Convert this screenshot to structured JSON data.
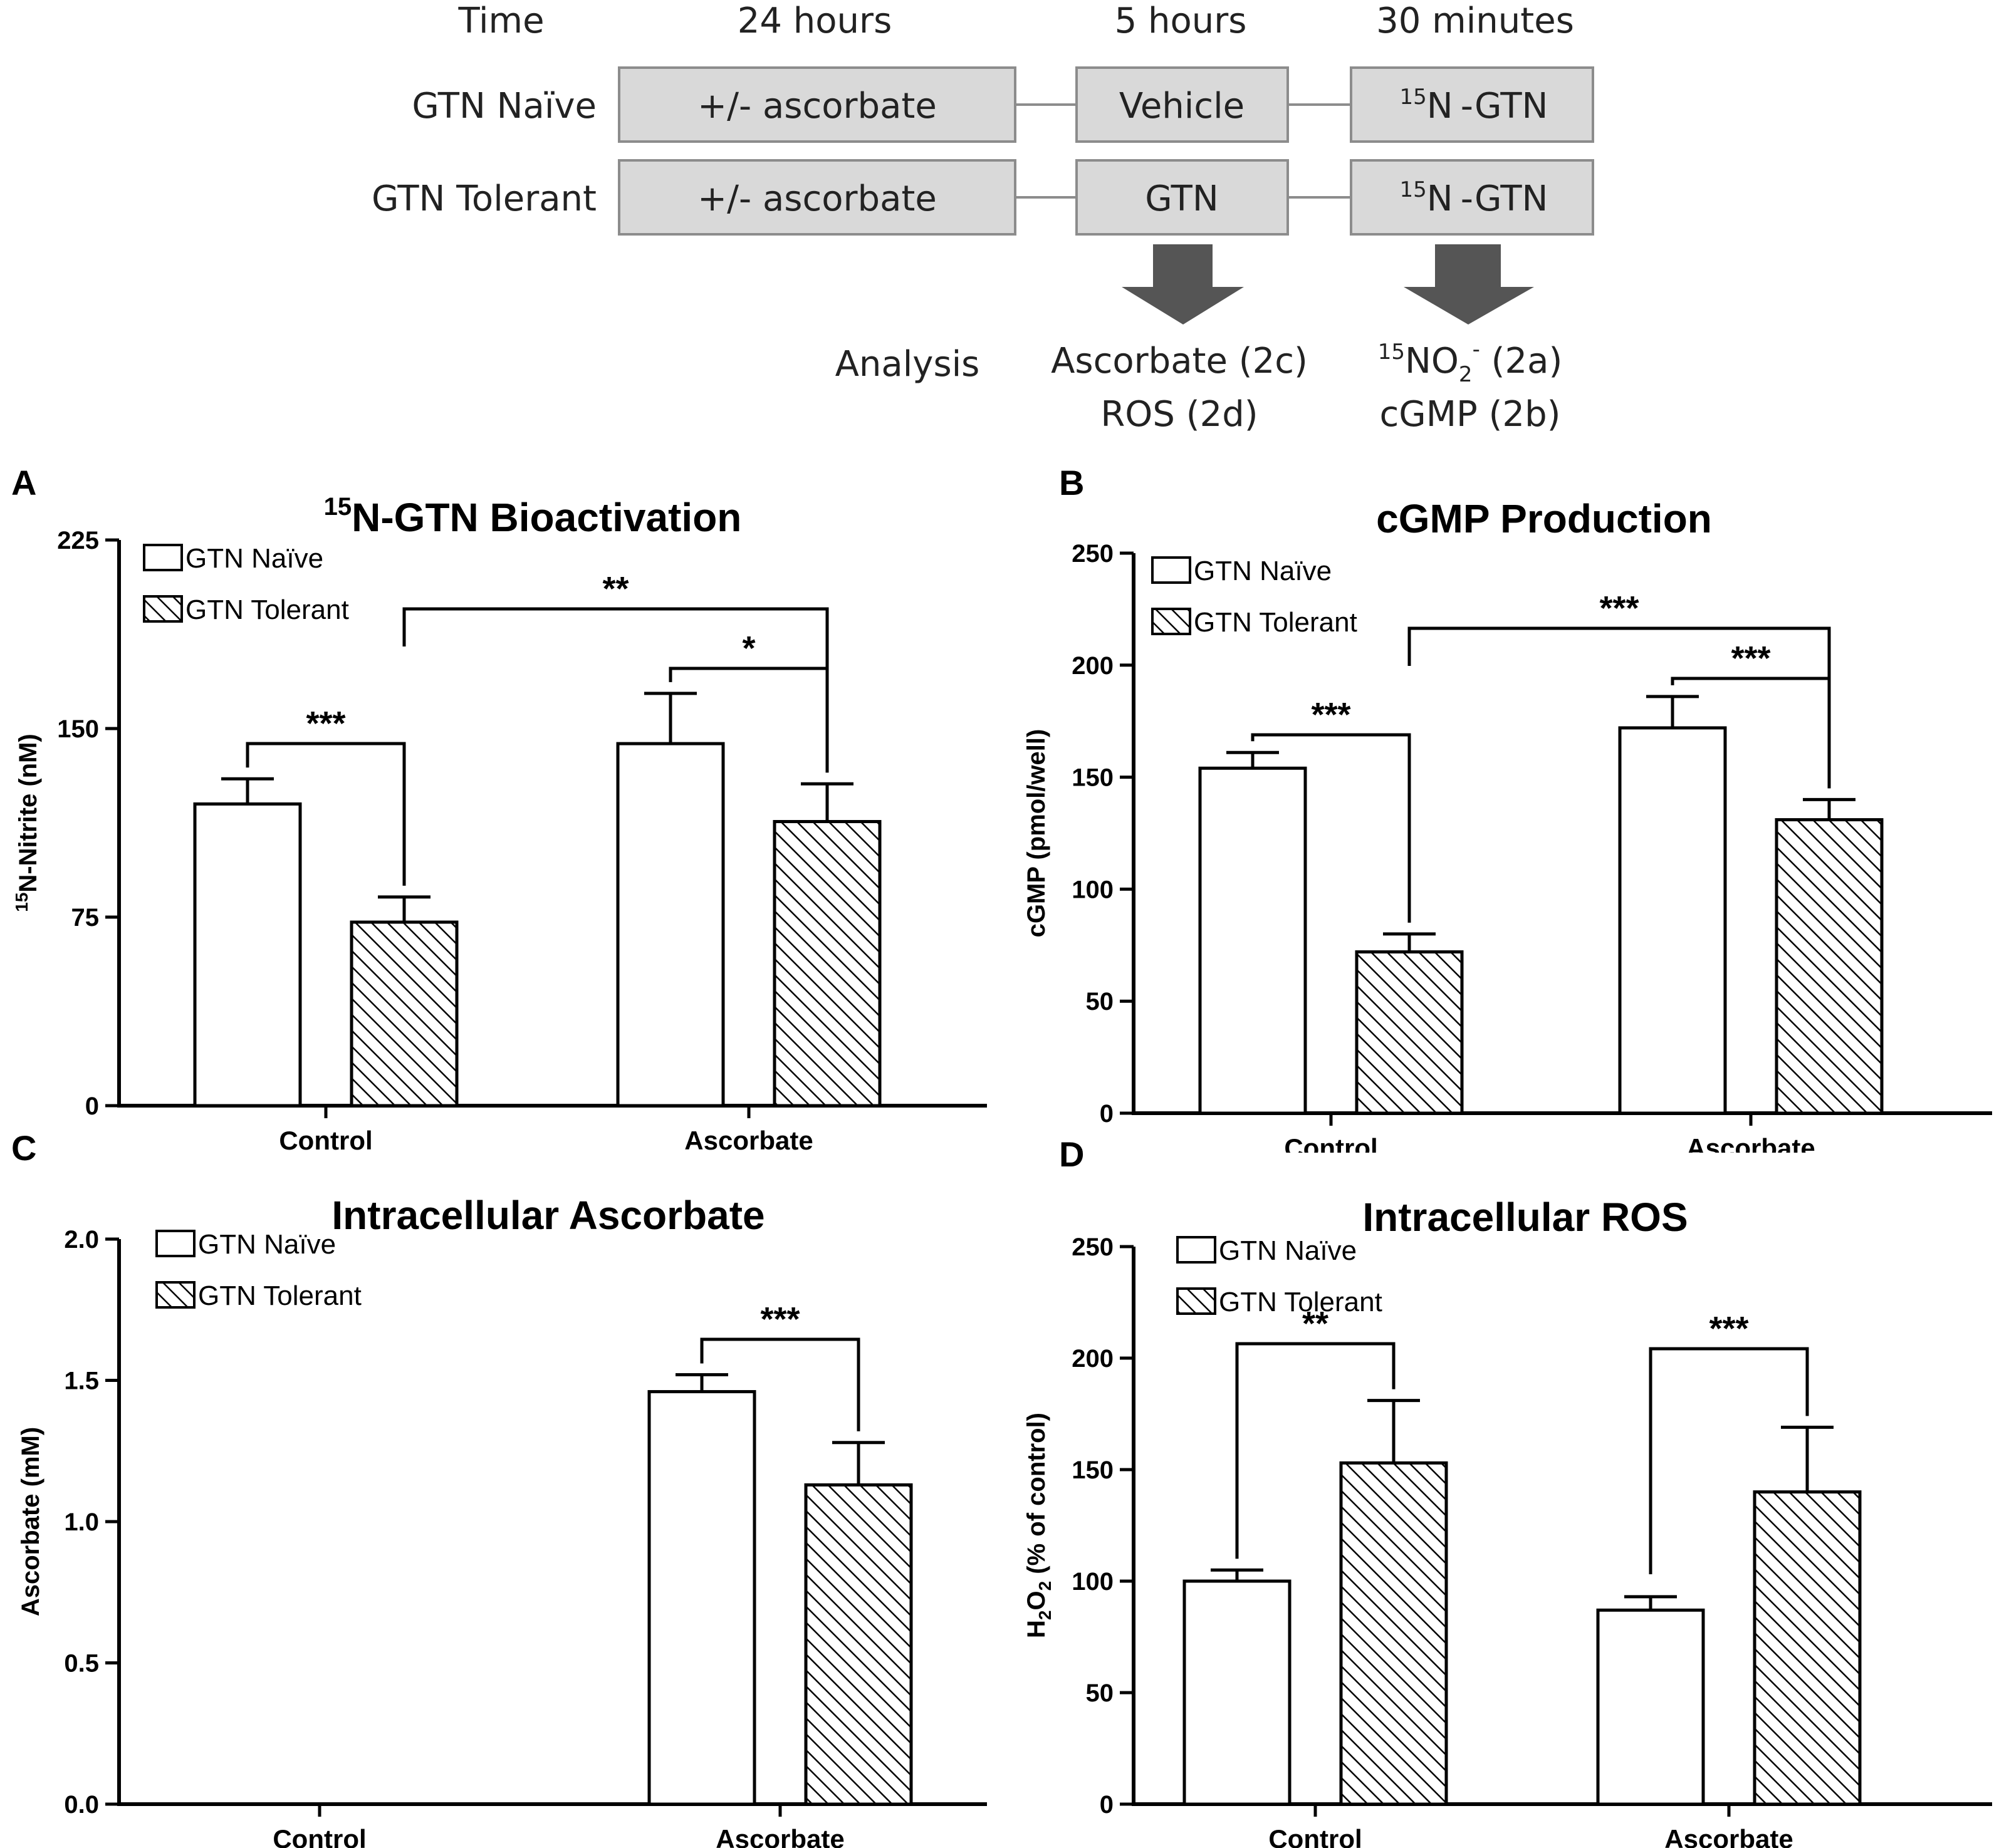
{
  "schema": {
    "time_label": "Time",
    "durations": [
      "24 hours",
      "5 hours",
      "30 minutes"
    ],
    "rows": [
      {
        "label": "GTN Naïve",
        "boxes": [
          "+/- ascorbate",
          "Vehicle",
          "-GTN"
        ],
        "iso": "15",
        "iso_base": "N"
      },
      {
        "label": "GTN Tolerant",
        "boxes": [
          "+/- ascorbate",
          "GTN",
          "-GTN"
        ],
        "iso": "15",
        "iso_base": "N"
      }
    ],
    "analysis_label": "Analysis",
    "analysis_mid": [
      "Ascorbate (2c)",
      "ROS (2d)"
    ],
    "analysis_right_line1": {
      "sup": "15",
      "base": "NO",
      "sub": "2",
      "sup2": "-",
      "tail": " (2a)"
    },
    "analysis_right_line2": "cGMP (2b)",
    "colors": {
      "box_fill": "#d9d9d9",
      "box_stroke": "#8c8c8c",
      "arrow": "#555555",
      "text": "#222222"
    },
    "arrow_icon": "down-arrow-icon"
  },
  "legend": {
    "naive": "GTN Naïve",
    "tolerant": "GTN Tolerant"
  },
  "chart_data": [
    {
      "panel": "A",
      "type": "bar",
      "title": "N-GTN Bioactivation",
      "title_sup": "15",
      "ylabel": "N-Nitrite (nM)",
      "ylabel_sup": "15",
      "xlabel": "",
      "categories": [
        "Control",
        "Ascorbate"
      ],
      "ylim": [
        0,
        225
      ],
      "yticks": [
        0,
        75,
        150,
        225
      ],
      "series": [
        {
          "name": "GTN Naïve",
          "values": [
            120,
            144
          ],
          "errors": [
            10,
            20
          ]
        },
        {
          "name": "GTN Tolerant",
          "values": [
            73,
            113
          ],
          "errors": [
            10,
            15
          ]
        }
      ],
      "brackets": [
        {
          "label": "***",
          "from": [
            0,
            0
          ],
          "to": [
            0,
            1
          ]
        },
        {
          "label": "*",
          "from": [
            1,
            0
          ],
          "to": [
            1,
            1
          ]
        },
        {
          "label": "**",
          "from": [
            0,
            1
          ],
          "to": [
            1,
            1
          ]
        }
      ]
    },
    {
      "panel": "B",
      "type": "bar",
      "title": "cGMP Production",
      "ylabel": "cGMP (pmol/well)",
      "xlabel": "",
      "categories": [
        "Control",
        "Ascorbate"
      ],
      "ylim": [
        0,
        250
      ],
      "yticks": [
        0,
        50,
        100,
        150,
        200,
        250
      ],
      "series": [
        {
          "name": "GTN Naïve",
          "values": [
            154,
            172
          ],
          "errors": [
            7,
            14
          ]
        },
        {
          "name": "GTN Tolerant",
          "values": [
            72,
            131
          ],
          "errors": [
            8,
            9
          ]
        }
      ],
      "brackets": [
        {
          "label": "***",
          "from": [
            0,
            0
          ],
          "to": [
            0,
            1
          ]
        },
        {
          "label": "***",
          "from": [
            1,
            0
          ],
          "to": [
            1,
            1
          ]
        },
        {
          "label": "***",
          "from": [
            0,
            1
          ],
          "to": [
            1,
            1
          ]
        }
      ]
    },
    {
      "panel": "C",
      "type": "bar",
      "title": "Intracellular Ascorbate",
      "ylabel": "Ascorbate (mM)",
      "xlabel": "",
      "categories": [
        "Control",
        "Ascorbate"
      ],
      "ylim": [
        0,
        2.0
      ],
      "yticks": [
        "0.0",
        "0.5",
        "1.0",
        "1.5",
        "2.0"
      ],
      "series": [
        {
          "name": "GTN Naïve",
          "values": [
            0,
            1.46
          ],
          "errors": [
            0,
            0.06
          ]
        },
        {
          "name": "GTN Tolerant",
          "values": [
            0,
            1.13
          ],
          "errors": [
            0,
            0.15
          ]
        }
      ],
      "brackets": [
        {
          "label": "***",
          "from": [
            1,
            0
          ],
          "to": [
            1,
            1
          ]
        }
      ]
    },
    {
      "panel": "D",
      "type": "bar",
      "title": "Intracellular ROS",
      "ylabel": "H O (% of control)",
      "ylabel_parts": [
        "H",
        "2",
        "O",
        "2",
        " (% of control)"
      ],
      "xlabel": "",
      "categories": [
        "Control",
        "Ascorbate"
      ],
      "ylim": [
        0,
        250
      ],
      "yticks": [
        0,
        50,
        100,
        150,
        200,
        250
      ],
      "series": [
        {
          "name": "GTN Naïve",
          "values": [
            100,
            87
          ],
          "errors": [
            5,
            6
          ]
        },
        {
          "name": "GTN Tolerant",
          "values": [
            153,
            140
          ],
          "errors": [
            28,
            29
          ]
        }
      ],
      "brackets": [
        {
          "label": "**",
          "from": [
            0,
            0
          ],
          "to": [
            0,
            1
          ]
        },
        {
          "label": "***",
          "from": [
            1,
            0
          ],
          "to": [
            1,
            1
          ]
        }
      ]
    }
  ]
}
